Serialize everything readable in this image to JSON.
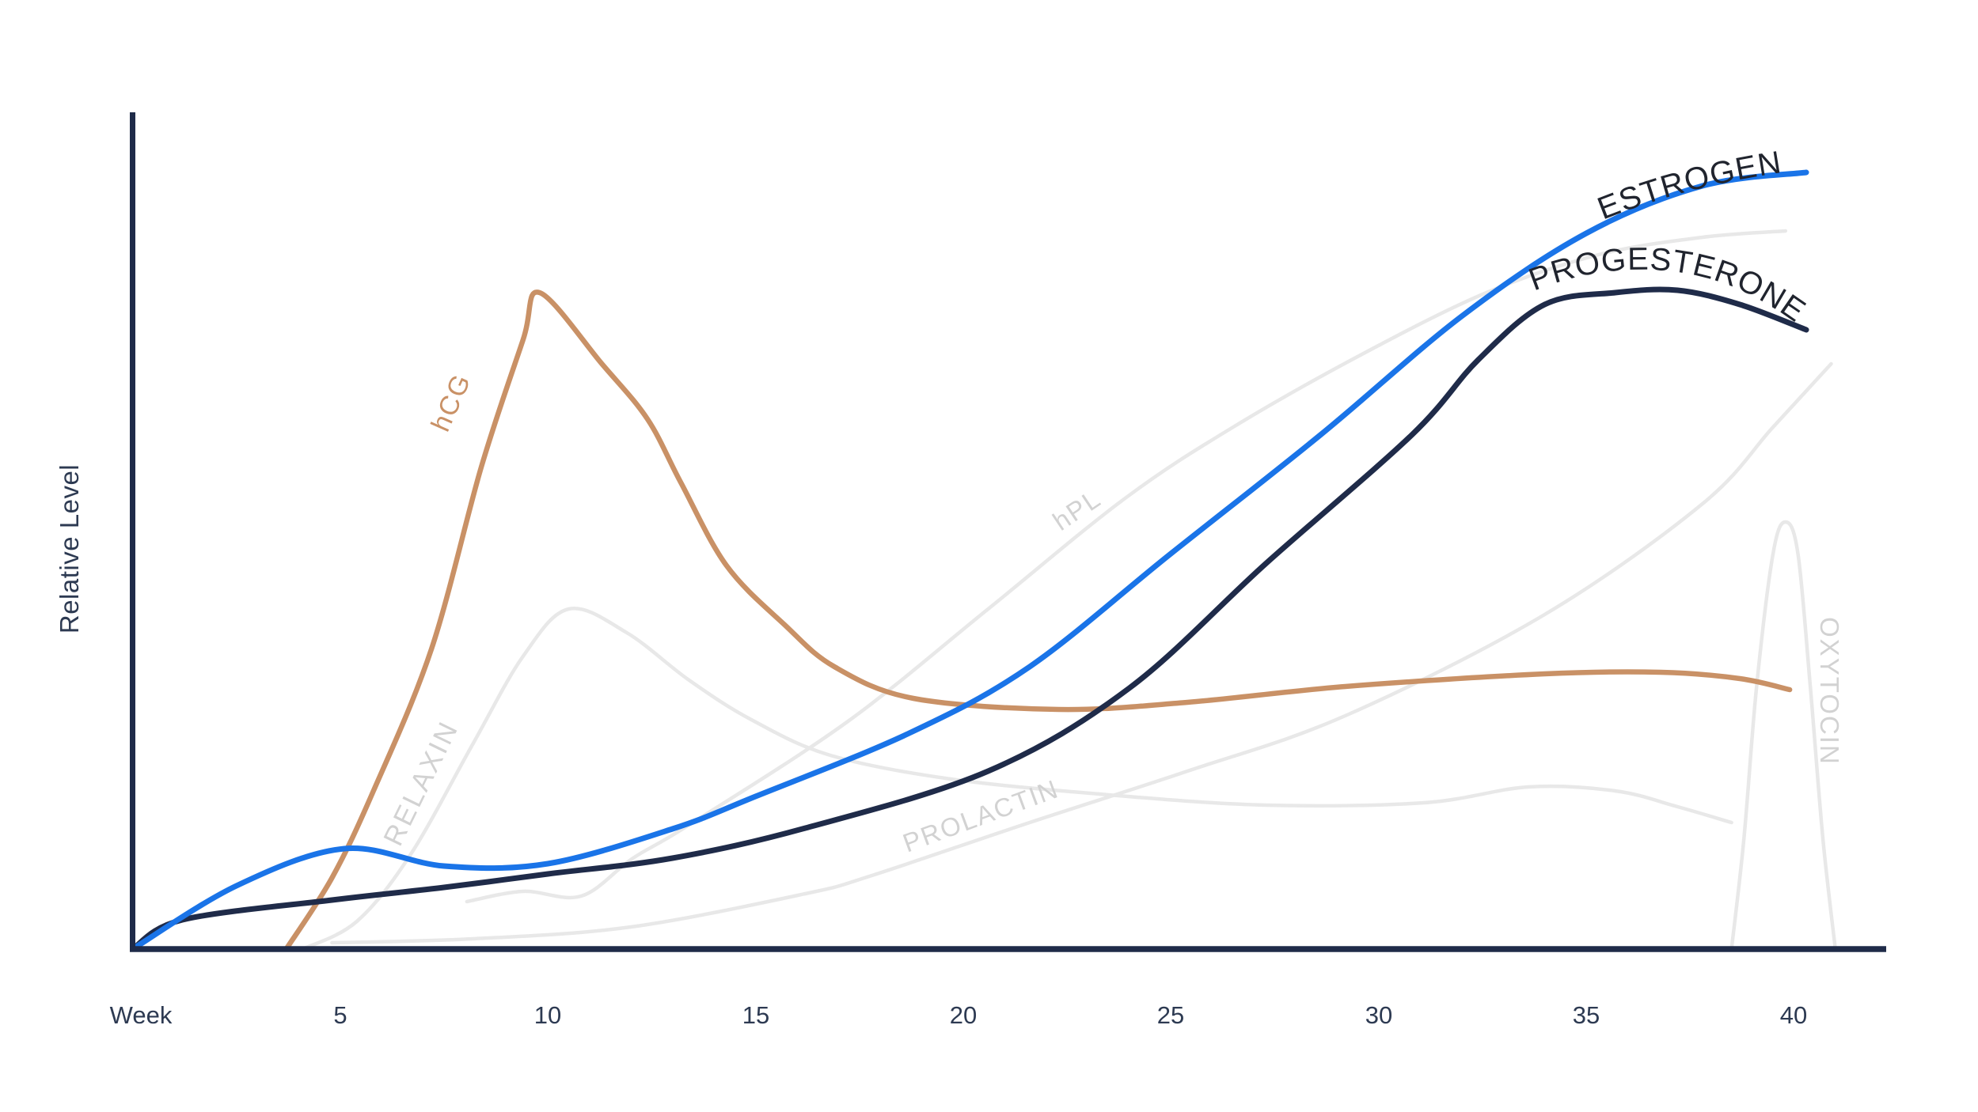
{
  "axes": {
    "y_label": "Relative Level",
    "x_label": "Week",
    "x_ticks": [
      "5",
      "10",
      "15",
      "20",
      "25",
      "30",
      "35",
      "40"
    ],
    "x_tick_weeks": [
      5,
      10,
      15,
      20,
      25,
      30,
      35,
      40
    ]
  },
  "labels": {
    "estrogen": "ESTROGEN",
    "progesterone": "PROGESTERONE",
    "hcg": "hCG",
    "relaxin": "RELAXIN",
    "hpl": "hPL",
    "prolactin": "PROLACTIN",
    "oxytocin": "OXYTOCIN"
  },
  "colors": {
    "estrogen": "#1a74e8",
    "progesterone": "#1f2b49",
    "hcg": "#c99166",
    "gray_curve": "#e8e8e8",
    "gray_label": "#d2d2d2",
    "dark_label": "#20242e",
    "axis": "#1f2b49",
    "axis_text": "#2d3a52"
  },
  "chart_data": {
    "type": "line",
    "title": "",
    "xlabel": "Week",
    "ylabel": "Relative Level",
    "x_range": [
      0,
      42
    ],
    "y_range": [
      0,
      1
    ],
    "grid": false,
    "legend": "labels drawn along curves",
    "series": [
      {
        "key": "relaxin",
        "name": "RELAXIN",
        "color_key": "gray_curve",
        "points": [
          [
            4.1,
            0.0
          ],
          [
            5.4,
            0.035
          ],
          [
            6.7,
            0.12
          ],
          [
            8.2,
            0.26
          ],
          [
            9.4,
            0.37
          ],
          [
            10.5,
            0.43
          ],
          [
            11.9,
            0.4
          ],
          [
            13.4,
            0.34
          ],
          [
            14.9,
            0.29
          ],
          [
            16.8,
            0.245
          ],
          [
            19.7,
            0.215
          ],
          [
            23.5,
            0.195
          ],
          [
            27.3,
            0.182
          ],
          [
            31.1,
            0.185
          ],
          [
            33.6,
            0.205
          ],
          [
            35.7,
            0.2
          ],
          [
            37.2,
            0.18
          ],
          [
            38.5,
            0.16
          ]
        ]
      },
      {
        "key": "hpl",
        "name": "hPL",
        "color_key": "gray_curve",
        "points": [
          [
            8.05,
            0.06
          ],
          [
            9.4,
            0.073
          ],
          [
            10.8,
            0.067
          ],
          [
            12.05,
            0.115
          ],
          [
            13.4,
            0.157
          ],
          [
            17.2,
            0.287
          ],
          [
            20.6,
            0.43
          ],
          [
            23.9,
            0.57
          ],
          [
            26.5,
            0.66
          ],
          [
            29.6,
            0.752
          ],
          [
            32.6,
            0.83
          ],
          [
            35.3,
            0.878
          ],
          [
            37.8,
            0.9
          ],
          [
            39.8,
            0.908
          ]
        ]
      },
      {
        "key": "prolactin",
        "name": "PROLACTIN",
        "color_key": "gray_curve",
        "points": [
          [
            4.8,
            0.008
          ],
          [
            8.2,
            0.013
          ],
          [
            12.0,
            0.028
          ],
          [
            16.2,
            0.07
          ],
          [
            17.8,
            0.093
          ],
          [
            21.6,
            0.16
          ],
          [
            25.4,
            0.225
          ],
          [
            29.2,
            0.295
          ],
          [
            34.0,
            0.423
          ],
          [
            37.8,
            0.563
          ],
          [
            39.5,
            0.66
          ],
          [
            40.9,
            0.74
          ]
        ]
      },
      {
        "key": "oxytocin",
        "name": "OXYTOCIN",
        "color_key": "gray_curve",
        "points": [
          [
            38.5,
            0.0
          ],
          [
            38.8,
            0.14
          ],
          [
            39.1,
            0.33
          ],
          [
            39.5,
            0.5
          ],
          [
            39.8,
            0.54
          ],
          [
            40.1,
            0.5
          ],
          [
            40.4,
            0.33
          ],
          [
            40.7,
            0.14
          ],
          [
            41.0,
            0.0
          ]
        ]
      },
      {
        "key": "hcg",
        "name": "hCG",
        "color_key": "hcg",
        "points": [
          [
            3.7,
            0.0
          ],
          [
            4.8,
            0.09
          ],
          [
            5.8,
            0.2
          ],
          [
            7.2,
            0.38
          ],
          [
            8.4,
            0.61
          ],
          [
            9.4,
            0.77
          ],
          [
            9.8,
            0.83
          ],
          [
            11.3,
            0.74
          ],
          [
            12.4,
            0.67
          ],
          [
            13.2,
            0.59
          ],
          [
            14.3,
            0.485
          ],
          [
            15.7,
            0.41
          ],
          [
            16.9,
            0.357
          ],
          [
            18.8,
            0.317
          ],
          [
            22.3,
            0.303
          ],
          [
            25.4,
            0.312
          ],
          [
            29.2,
            0.332
          ],
          [
            34.0,
            0.348
          ],
          [
            36.8,
            0.35
          ],
          [
            38.7,
            0.342
          ],
          [
            39.9,
            0.328
          ]
        ]
      },
      {
        "key": "progesterone",
        "name": "PROGESTERONE",
        "color_key": "progesterone",
        "points": [
          [
            0,
            0.0
          ],
          [
            1.2,
            0.037
          ],
          [
            4.8,
            0.062
          ],
          [
            7.5,
            0.078
          ],
          [
            10.0,
            0.095
          ],
          [
            13.0,
            0.115
          ],
          [
            16.2,
            0.153
          ],
          [
            20.6,
            0.225
          ],
          [
            24.0,
            0.33
          ],
          [
            27.3,
            0.488
          ],
          [
            30.8,
            0.65
          ],
          [
            32.4,
            0.745
          ],
          [
            34.0,
            0.815
          ],
          [
            35.7,
            0.83
          ],
          [
            37.2,
            0.833
          ],
          [
            38.7,
            0.815
          ],
          [
            40.3,
            0.783
          ]
        ]
      },
      {
        "key": "estrogen",
        "name": "ESTROGEN",
        "color_key": "estrogen",
        "points": [
          [
            0,
            0.0
          ],
          [
            2.5,
            0.08
          ],
          [
            5.1,
            0.127
          ],
          [
            7.5,
            0.105
          ],
          [
            10.0,
            0.108
          ],
          [
            13.0,
            0.152
          ],
          [
            15.0,
            0.193
          ],
          [
            18.7,
            0.273
          ],
          [
            21.6,
            0.357
          ],
          [
            25.0,
            0.5
          ],
          [
            28.6,
            0.65
          ],
          [
            32.0,
            0.8
          ],
          [
            35.0,
            0.905
          ],
          [
            37.8,
            0.965
          ],
          [
            40.3,
            0.982
          ]
        ]
      }
    ]
  }
}
